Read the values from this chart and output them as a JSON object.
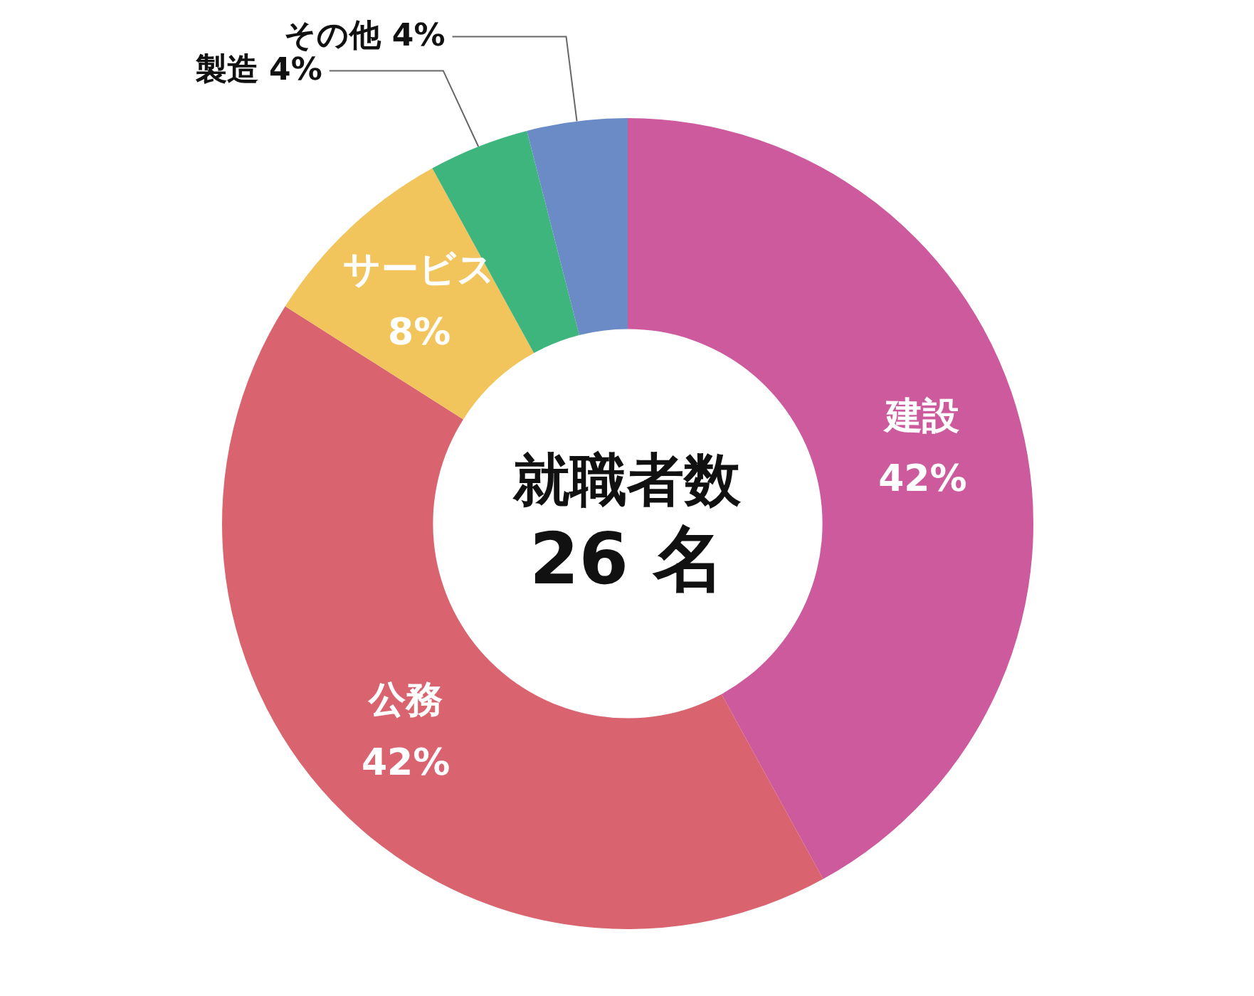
{
  "chart_data": {
    "type": "donut",
    "title": "就職者数",
    "subtitle": "26 名",
    "categories": [
      "建設",
      "公務",
      "サービス",
      "製造",
      "その他"
    ],
    "values": [
      42,
      42,
      8,
      4,
      4
    ],
    "value_labels": [
      "42%",
      "42%",
      "8%",
      "4%",
      "4%"
    ],
    "colors": [
      "#cc5a9c",
      "#d9636f",
      "#f2c45c",
      "#3fb57e",
      "#6b8bc6"
    ],
    "legend": false
  }
}
